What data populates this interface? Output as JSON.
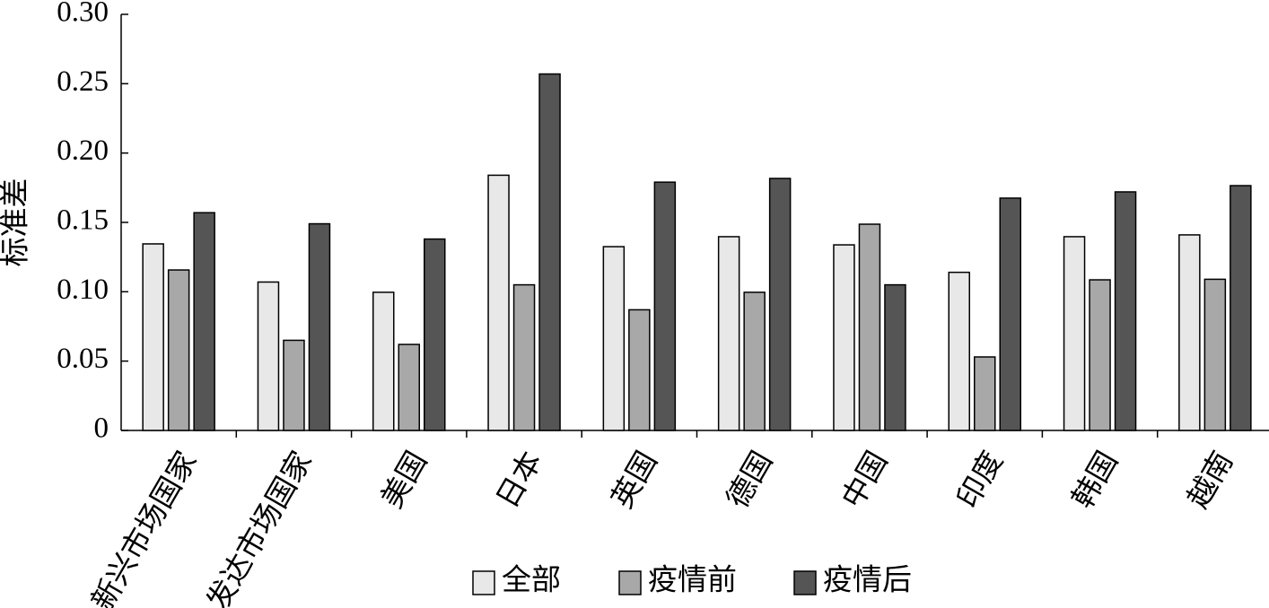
{
  "chart_data": {
    "type": "bar",
    "y_label": "标准差",
    "categories": [
      "新兴市场国家",
      "发达市场国家",
      "美国",
      "日本",
      "英国",
      "德国",
      "中国",
      "印度",
      "韩国",
      "越南"
    ],
    "series": [
      {
        "name": "全部",
        "color": "#e8e8e8",
        "values": [
          0.1345,
          0.107,
          0.0996,
          0.184,
          0.1325,
          0.1397,
          0.1338,
          0.114,
          0.1397,
          0.141
        ]
      },
      {
        "name": "疫情前",
        "color": "#a8a8a8",
        "values": [
          0.1157,
          0.065,
          0.062,
          0.105,
          0.087,
          0.0996,
          0.1487,
          0.053,
          0.1086,
          0.109
        ]
      },
      {
        "name": "疫情后",
        "color": "#555555",
        "values": [
          0.157,
          0.149,
          0.138,
          0.257,
          0.179,
          0.1817,
          0.105,
          0.1675,
          0.172,
          0.1765
        ]
      }
    ],
    "ylim": [
      0,
      0.3
    ],
    "yticks": [
      0,
      0.05,
      {
        "value": 0.1,
        "label": "0.10"
      },
      0.15,
      {
        "value": 0.2,
        "label": "0.20"
      },
      0.25,
      {
        "value": 0.3,
        "label": "0.30"
      }
    ],
    "legend": "bottom"
  }
}
